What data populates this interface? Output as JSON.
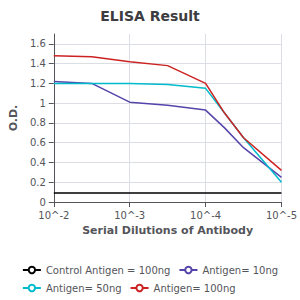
{
  "chart_data": {
    "type": "line",
    "title": "ELISA Result",
    "xlabel": "Serial Dilutions of Antibody",
    "ylabel": "O.D.",
    "xlim": [
      -2,
      -5
    ],
    "xticks": [
      {
        "value": -2,
        "label": "10^-2"
      },
      {
        "value": -3,
        "label": "10^-3"
      },
      {
        "value": -4,
        "label": "10^-4"
      },
      {
        "value": -5,
        "label": "10^-5"
      }
    ],
    "ylim": [
      0,
      1.7
    ],
    "yticks": [
      0,
      0.2,
      0.4,
      0.6,
      0.8,
      1,
      1.2,
      1.4,
      1.6
    ],
    "grid": true,
    "legend": "bottom",
    "series": [
      {
        "name": "Control Antigen = 100ng",
        "color": "#000000",
        "x": [
          -2,
          -2.5,
          -3,
          -3.5,
          -4,
          -4.5,
          -5
        ],
        "values": [
          0.09,
          0.09,
          0.09,
          0.09,
          0.09,
          0.09,
          0.09
        ]
      },
      {
        "name": "Antigen= 10ng",
        "color": "#5544aa",
        "x": [
          -2,
          -2.5,
          -3,
          -3.5,
          -4,
          -4.25,
          -4.5,
          -5
        ],
        "values": [
          1.22,
          1.2,
          1.01,
          0.98,
          0.93,
          0.75,
          0.55,
          0.25
        ]
      },
      {
        "name": "Antigen= 50ng",
        "color": "#00bbcc",
        "x": [
          -2,
          -2.5,
          -3,
          -3.5,
          -4,
          -4.25,
          -4.5,
          -5
        ],
        "values": [
          1.2,
          1.2,
          1.2,
          1.19,
          1.15,
          0.9,
          0.65,
          0.2
        ]
      },
      {
        "name": "Antigen= 100ng",
        "color": "#cc2222",
        "x": [
          -2,
          -2.5,
          -3,
          -3.5,
          -4,
          -4.25,
          -4.5,
          -5
        ],
        "values": [
          1.48,
          1.47,
          1.42,
          1.38,
          1.2,
          0.9,
          0.65,
          0.32
        ]
      }
    ]
  }
}
